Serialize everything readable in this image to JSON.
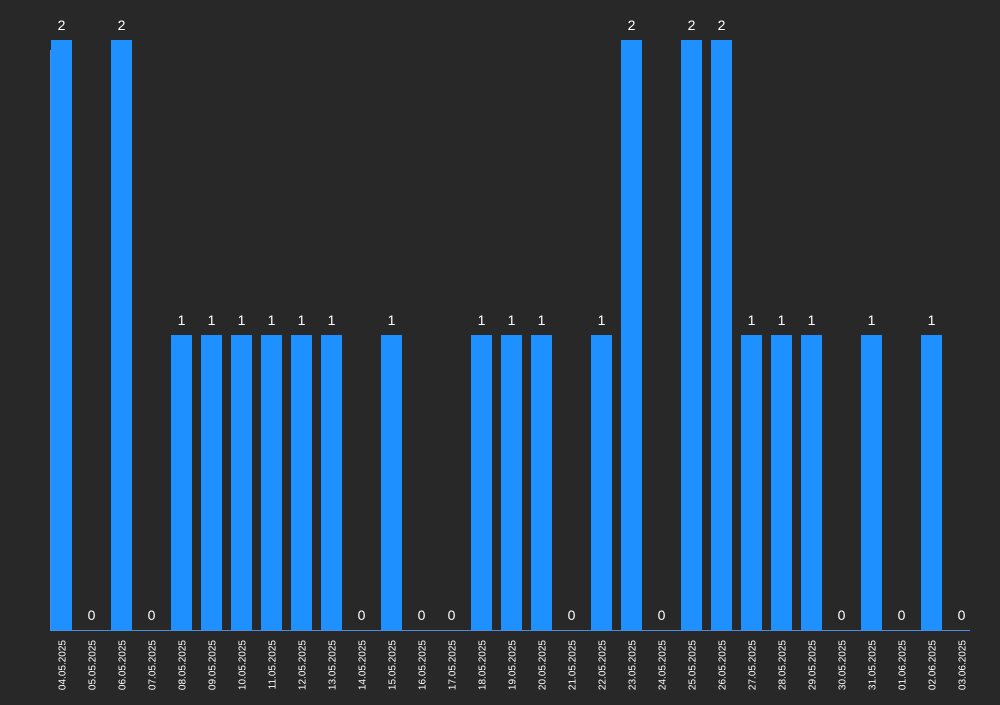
{
  "chart_data": {
    "type": "bar",
    "categories": [
      "04.05.2025",
      "05.05.2025",
      "06.05.2025",
      "07.05.2025",
      "08.05.2025",
      "09.05.2025",
      "10.05.2025",
      "11.05.2025",
      "12.05.2025",
      "13.05.2025",
      "14.05.2025",
      "15.05.2025",
      "16.05.2025",
      "17.05.2025",
      "18.05.2025",
      "19.05.2025",
      "20.05.2025",
      "21.05.2025",
      "22.05.2025",
      "23.05.2025",
      "24.05.2025",
      "25.05.2025",
      "26.05.2025",
      "27.05.2025",
      "28.05.2025",
      "29.05.2025",
      "30.05.2025",
      "31.05.2025",
      "01.06.2025",
      "02.06.2025",
      "03.06.2025"
    ],
    "values": [
      2,
      0,
      2,
      0,
      1,
      1,
      1,
      1,
      1,
      1,
      0,
      1,
      0,
      0,
      1,
      1,
      1,
      0,
      1,
      2,
      0,
      2,
      2,
      1,
      1,
      1,
      0,
      1,
      0,
      1,
      0
    ],
    "ylim": [
      0,
      2
    ],
    "grid": false,
    "legend": "none",
    "data_labels": true,
    "colors": {
      "bar": "#1e90ff",
      "background": "#282828",
      "axis": "#4a8fe0",
      "label": "#ffffff"
    }
  }
}
